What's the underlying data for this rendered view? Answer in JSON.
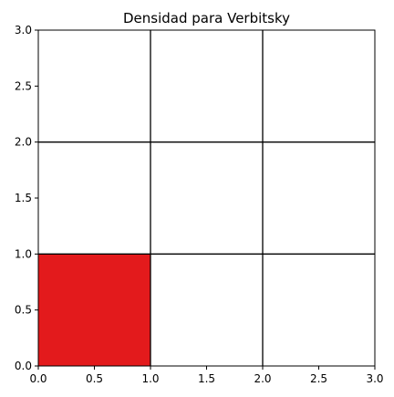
{
  "chart_data": {
    "type": "heatmap",
    "title": "Densidad para Verbitsky",
    "xlabel": "",
    "ylabel": "",
    "xlim": [
      0,
      3
    ],
    "ylim": [
      0,
      3
    ],
    "grid": true,
    "xticks": [
      0.0,
      0.5,
      1.0,
      1.5,
      2.0,
      2.5,
      3.0
    ],
    "yticks": [
      0.0,
      0.5,
      1.0,
      1.5,
      2.0,
      2.5,
      3.0
    ],
    "xtick_labels": [
      "0.0",
      "0.5",
      "1.0",
      "1.5",
      "2.0",
      "2.5",
      "3.0"
    ],
    "ytick_labels": [
      "0.0",
      "0.5",
      "1.0",
      "1.5",
      "2.0",
      "2.5",
      "3.0"
    ],
    "grid_lines": [
      1,
      2
    ],
    "cells": [
      {
        "x0": 0,
        "x1": 1,
        "y0": 0,
        "y1": 1,
        "color": "#e31a1c"
      }
    ]
  }
}
